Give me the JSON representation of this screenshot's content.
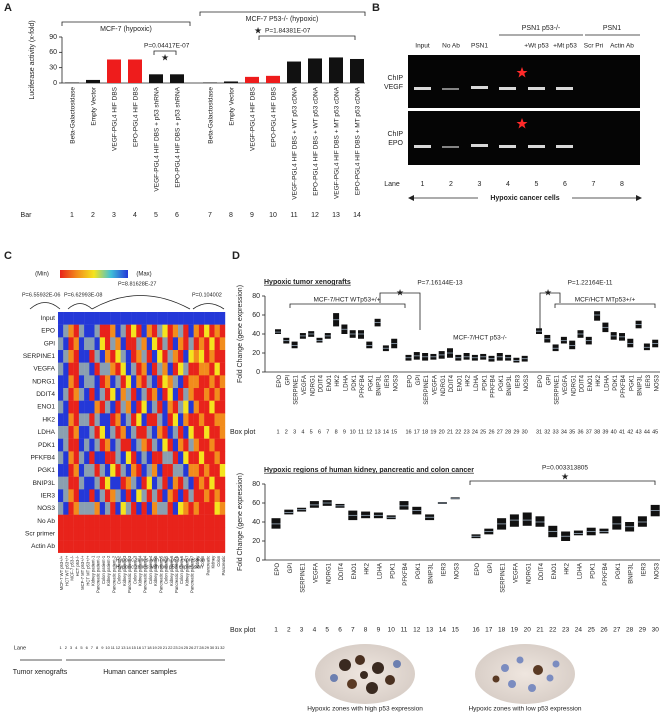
{
  "chart_data": [
    {
      "type": "bar",
      "panel": "A",
      "ylabel": "Luciferase activity (x-fold)",
      "ylim": [
        0,
        90
      ],
      "yticks": [
        0,
        30,
        60,
        90
      ],
      "categories": [
        "Beta-Galactosidase",
        "Empty Vector",
        "VEGF-PGL4 HIF DBS",
        "EPO-PGL4 HIF DBS",
        "VEGF-PGL4 HIF DBS + p53 shRNA",
        "EPO-PGL4 HIF DBS + p53 shRNA",
        "Beta-Galactosidase",
        "Empty Vector",
        "VEGF-PGL4 HIF DBS",
        "EPO-PGL4 HIF DBS",
        "VEGF-PGL4 HIF DBS + WT p53 cDNA",
        "EPO-PGL4 HIF DBS + WT p53 cDNA",
        "VEGF-PGL4 HIF DBS + MT p53 cDNA",
        "EPO-PGL4 HIF DBS + MT p53 cDNA"
      ],
      "values": [
        1,
        6,
        46,
        46,
        17,
        17,
        1,
        3,
        12,
        14,
        42,
        48,
        50,
        47
      ],
      "colors": [
        "#111111",
        "#111111",
        "#ee1c1c",
        "#ee1c1c",
        "#111111",
        "#111111",
        "#111111",
        "#111111",
        "#ee1c1c",
        "#ee1c1c",
        "#111111",
        "#111111",
        "#111111",
        "#111111"
      ],
      "bar_label": "Bar",
      "bar_numbers": [
        1,
        2,
        3,
        4,
        5,
        6,
        7,
        8,
        9,
        10,
        11,
        12,
        13,
        14
      ],
      "group_labels": [
        "MCF-7 (hypoxic)",
        "MCF-7 P53-/- (hypoxic)"
      ],
      "p_values": [
        "P=0.04417E-07",
        "P=1.84381E-07"
      ],
      "star": "★"
    },
    {
      "type": "heatmap",
      "panel": "C",
      "legend_min": "(Min)",
      "legend_max": "(Max)",
      "scale_colors": [
        "#e8231b",
        "#f28c1c",
        "#f4e41e",
        "#8a9fb0",
        "#2438d8"
      ],
      "rows": [
        "Input",
        "EPO",
        "GPI",
        "SERPINE1",
        "VEGFA",
        "NDRG1",
        "DDIT4",
        "ENO1",
        "HK2",
        "LDHA",
        "PDK1",
        "PFKFB4",
        "PGK1",
        "BNIP3L",
        "IER3",
        "NOS3",
        "No Ab",
        "Scr primer",
        "Actin Ab"
      ],
      "columns": [
        "MCF-7 WT p53+/+",
        "HCT WT p53+/+",
        "MCF-7 p53-/-",
        "HCT p53-/-",
        "MCF-7 MT p53+/+",
        "HCT MT p53+/+",
        "Kidney patient-1",
        "Pancreatic patient-1",
        "Colon patient-1",
        "Kidney patient-2",
        "Pancreatic patient-2",
        "Colon patient-2",
        "Kidney patient-3",
        "Pancreatic patient-3",
        "Colon patient-3",
        "Kidney patient-4",
        "Pancreatic patient-4",
        "Colon patient-4",
        "Kidney patient-5",
        "Pancreatic patient-5",
        "Colon patient-5",
        "Kidney patient-6",
        "Pancreatic patient-6",
        "Colon patient-6",
        "Kidney patient-7",
        "Pancreatic patient-7",
        "Kidney",
        "Colon",
        "Pancreatic",
        "Kidney",
        "Colon",
        "Pancreatic"
      ],
      "lane_label": "Lane",
      "lanes": [
        1,
        2,
        3,
        4,
        5,
        6,
        7,
        8,
        9,
        10,
        11,
        12,
        13,
        14,
        15,
        16,
        17,
        18,
        19,
        20,
        21,
        22,
        23,
        24,
        25,
        26,
        27,
        28,
        29,
        30,
        31,
        32
      ],
      "values": [
        [
          4,
          4,
          4,
          4,
          4,
          4,
          4,
          4,
          4,
          4,
          4,
          4,
          4,
          4,
          4,
          4,
          4,
          4,
          4,
          4,
          4,
          4,
          4,
          4,
          4,
          4,
          4,
          4,
          4,
          4,
          4,
          4
        ],
        [
          4,
          3,
          1,
          0,
          3,
          4,
          4,
          3,
          0,
          0,
          1,
          4,
          3,
          0,
          2,
          0,
          4,
          1,
          0,
          3,
          2,
          0,
          1,
          3,
          0,
          4,
          1,
          0,
          2,
          0,
          1,
          0
        ],
        [
          3,
          4,
          0,
          1,
          4,
          3,
          3,
          4,
          2,
          0,
          3,
          1,
          4,
          0,
          0,
          3,
          1,
          4,
          2,
          0,
          3,
          0,
          4,
          1,
          0,
          3,
          0,
          1,
          0,
          2,
          0,
          1
        ],
        [
          4,
          3,
          1,
          0,
          4,
          4,
          0,
          3,
          4,
          1,
          0,
          2,
          3,
          4,
          0,
          1,
          3,
          0,
          4,
          2,
          0,
          3,
          1,
          0,
          4,
          2,
          1,
          2,
          0,
          1,
          0,
          0
        ],
        [
          3,
          4,
          0,
          0,
          3,
          3,
          4,
          0,
          3,
          3,
          1,
          0,
          2,
          4,
          3,
          0,
          1,
          4,
          0,
          3,
          1,
          4,
          0,
          2,
          3,
          0,
          0,
          1,
          1,
          0,
          2,
          0
        ],
        [
          4,
          4,
          1,
          0,
          4,
          3,
          3,
          4,
          0,
          1,
          4,
          3,
          0,
          2,
          4,
          1,
          0,
          3,
          4,
          0,
          2,
          1,
          3,
          4,
          0,
          1,
          1,
          0,
          0,
          1,
          0,
          1
        ],
        [
          4,
          3,
          0,
          1,
          3,
          4,
          0,
          4,
          3,
          0,
          2,
          4,
          1,
          3,
          0,
          4,
          3,
          0,
          1,
          4,
          0,
          2,
          4,
          0,
          3,
          1,
          0,
          0,
          1,
          0,
          1,
          0
        ],
        [
          3,
          4,
          0,
          0,
          4,
          4,
          4,
          1,
          0,
          3,
          4,
          0,
          3,
          1,
          4,
          0,
          2,
          4,
          3,
          0,
          4,
          1,
          0,
          3,
          2,
          4,
          1,
          0,
          0,
          2,
          0,
          0
        ],
        [
          4,
          4,
          1,
          0,
          3,
          3,
          0,
          3,
          4,
          4,
          0,
          1,
          4,
          3,
          0,
          2,
          4,
          0,
          0,
          3,
          4,
          0,
          2,
          4,
          1,
          0,
          0,
          1,
          0,
          0,
          1,
          1
        ],
        [
          3,
          3,
          0,
          1,
          4,
          4,
          3,
          0,
          2,
          4,
          3,
          0,
          1,
          4,
          3,
          0,
          0,
          3,
          4,
          1,
          0,
          4,
          3,
          0,
          4,
          2,
          0,
          0,
          2,
          0,
          0,
          1
        ],
        [
          4,
          3,
          0,
          0,
          4,
          3,
          4,
          3,
          0,
          1,
          4,
          3,
          0,
          0,
          4,
          3,
          1,
          0,
          3,
          4,
          2,
          0,
          4,
          1,
          0,
          3,
          1,
          0,
          0,
          1,
          0,
          0
        ],
        [
          3,
          4,
          1,
          0,
          3,
          4,
          0,
          4,
          4,
          0,
          0,
          3,
          4,
          2,
          0,
          4,
          3,
          4,
          0,
          0,
          3,
          3,
          0,
          4,
          2,
          0,
          0,
          2,
          0,
          0,
          1,
          0
        ],
        [
          4,
          4,
          0,
          1,
          4,
          3,
          3,
          0,
          3,
          4,
          2,
          0,
          3,
          4,
          1,
          0,
          4,
          3,
          1,
          4,
          0,
          0,
          3,
          3,
          4,
          1,
          1,
          0,
          1,
          0,
          0,
          2
        ],
        [
          3,
          3,
          0,
          0,
          3,
          4,
          4,
          3,
          0,
          2,
          4,
          4,
          0,
          1,
          3,
          4,
          0,
          2,
          4,
          3,
          0,
          4,
          1,
          0,
          3,
          4,
          0,
          1,
          0,
          2,
          0,
          0
        ],
        [
          4,
          3,
          1,
          0,
          4,
          4,
          0,
          4,
          3,
          0,
          1,
          3,
          4,
          0,
          4,
          2,
          3,
          0,
          3,
          0,
          4,
          1,
          0,
          4,
          0,
          3,
          0,
          0,
          1,
          0,
          1,
          0
        ],
        [
          3,
          4,
          0,
          1,
          3,
          3,
          3,
          1,
          4,
          3,
          0,
          4,
          2,
          3,
          0,
          4,
          0,
          4,
          1,
          3,
          3,
          0,
          4,
          2,
          1,
          0,
          1,
          0,
          0,
          0,
          2,
          1
        ],
        [
          0,
          0,
          0,
          0,
          0,
          0,
          0,
          0,
          0,
          0,
          0,
          0,
          0,
          0,
          0,
          0,
          0,
          0,
          0,
          0,
          0,
          0,
          0,
          0,
          0,
          0,
          0,
          0,
          0,
          0,
          0,
          0
        ],
        [
          0,
          0,
          0,
          0,
          0,
          0,
          0,
          0,
          0,
          0,
          0,
          0,
          0,
          0,
          0,
          0,
          0,
          0,
          0,
          0,
          0,
          0,
          0,
          0,
          0,
          0,
          0,
          0,
          0,
          0,
          0,
          0
        ],
        [
          0,
          0,
          0,
          0,
          0,
          0,
          0,
          0,
          0,
          0,
          0,
          0,
          0,
          0,
          0,
          0,
          0,
          0,
          0,
          0,
          0,
          0,
          0,
          0,
          0,
          0,
          0,
          0,
          0,
          0,
          0,
          0
        ]
      ],
      "p_values": [
        "P=6.55932E-06",
        "P=6.62993E-08",
        "P=8.81628E-27",
        "P=0.104002"
      ],
      "zone_labels": [
        "Hypoxic zones with high p53 expression",
        "Hypoxic zones with low p53 expression"
      ],
      "footer_labels": [
        "Tumor xenografts",
        "Human cancer samples"
      ]
    },
    {
      "type": "box",
      "panel": "D",
      "title": "Hypoxic tumor xenografts",
      "ylabel": "Fold Change (gene expression)",
      "ylim": [
        0,
        80
      ],
      "yticks": [
        0,
        20,
        40,
        60,
        80
      ],
      "categories": [
        "EPO",
        "GPI",
        "SERPINE1",
        "VEGFA",
        "NDRG1",
        "DDIT4",
        "ENO1",
        "HK2",
        "LDHA",
        "PDK1",
        "PFKFB4",
        "PGK1",
        "BNIP3L",
        "IER3",
        "NOS3",
        "EPO",
        "GPI",
        "SERPINE1",
        "VEGFA",
        "NDRG1",
        "DDIT4",
        "ENO1",
        "HK2",
        "LDHA",
        "PDK1",
        "PFKFB4",
        "PGK1",
        "BNIP3L",
        "IER3",
        "NOS3",
        "EPO",
        "GPI",
        "SERPINE1",
        "VEGFA",
        "NDRG1",
        "DDIT4",
        "ENO1",
        "HK2",
        "LDHA",
        "PDK1",
        "PFKFB4",
        "PGK1",
        "BNIP3L",
        "IER3",
        "NOS3"
      ],
      "box_label": "Box plot",
      "box_numbers": [
        1,
        2,
        3,
        4,
        5,
        6,
        7,
        8,
        9,
        10,
        11,
        12,
        13,
        14,
        15,
        16,
        17,
        18,
        19,
        20,
        21,
        22,
        23,
        24,
        25,
        26,
        27,
        28,
        29,
        30,
        31,
        32,
        33,
        34,
        35,
        36,
        37,
        38,
        39,
        40,
        41,
        42,
        43,
        44,
        45
      ],
      "q1": [
        40,
        30,
        25,
        35,
        37,
        31,
        35,
        48,
        40,
        36,
        35,
        25,
        48,
        22,
        25,
        12,
        13,
        12,
        13,
        14,
        15,
        12,
        13,
        12,
        13,
        11,
        12,
        12,
        10,
        11,
        40,
        31,
        22,
        30,
        24,
        36,
        29,
        54,
        42,
        34,
        33,
        26,
        46,
        23,
        26
      ],
      "median": [
        42,
        33,
        28,
        38,
        40,
        33,
        38,
        55,
        45,
        40,
        40,
        28,
        52,
        25,
        30,
        15,
        17,
        16,
        16,
        18,
        20,
        15,
        16,
        15,
        16,
        14,
        16,
        15,
        12,
        14,
        43,
        35,
        25,
        33,
        28,
        40,
        33,
        60,
        47,
        38,
        37,
        30,
        50,
        26,
        30
      ],
      "q3": [
        45,
        36,
        32,
        41,
        43,
        36,
        41,
        62,
        50,
        44,
        44,
        32,
        56,
        28,
        35,
        18,
        21,
        20,
        19,
        22,
        25,
        18,
        20,
        18,
        19,
        17,
        20,
        18,
        15,
        17,
        46,
        39,
        29,
        37,
        33,
        44,
        37,
        64,
        52,
        42,
        41,
        35,
        54,
        30,
        34
      ],
      "group_labels": [
        "MCF-7/HCT WTp53+/+",
        "MCF-7/HCT p53-/-",
        "MCF/HCT MTp53+/+"
      ],
      "p_values": [
        "P=7.16144E-13",
        "P=1.22164E-11"
      ],
      "star": "★"
    },
    {
      "type": "box",
      "title": "Hypoxic regions of human kidney, pancreatic and colon cancer",
      "ylabel": "Fold Change (gene expression)",
      "ylim": [
        0,
        80
      ],
      "yticks": [
        0,
        20,
        40,
        60,
        80
      ],
      "categories": [
        "EPO",
        "GPI",
        "SERPINE1",
        "VEGFA",
        "NDRG1",
        "DDIT4",
        "ENO1",
        "HK2",
        "LDHA",
        "PDK1",
        "PFKFB4",
        "PGK1",
        "BNIP3L",
        "IER3",
        "NOS3",
        "EPO",
        "GPI",
        "SERPINE1",
        "VEGFA",
        "NDRG1",
        "DDIT4",
        "ENO1",
        "HK2",
        "LDHA",
        "PDK1",
        "PFKFB4",
        "PGK1",
        "BNIP3L",
        "IER3",
        "NOS3"
      ],
      "box_label": "Box plot",
      "box_numbers": [
        1,
        2,
        3,
        4,
        5,
        6,
        7,
        8,
        9,
        10,
        11,
        12,
        13,
        14,
        15,
        16,
        17,
        18,
        19,
        20,
        21,
        22,
        23,
        24,
        25,
        26,
        27,
        28,
        29,
        30
      ],
      "q1": [
        33,
        48,
        51,
        55,
        57,
        55,
        42,
        44,
        44,
        43,
        53,
        48,
        42,
        59,
        64,
        23,
        27,
        32,
        35,
        36,
        35,
        24,
        20,
        26,
        26,
        28,
        32,
        30,
        35,
        46
      ],
      "median": [
        38,
        50,
        53,
        58,
        60,
        57,
        47,
        47,
        47,
        45,
        57,
        52,
        45,
        60,
        65,
        25,
        30,
        38,
        42,
        42,
        40,
        30,
        25,
        28,
        30,
        30,
        38,
        35,
        40,
        52
      ],
      "q3": [
        44,
        53,
        55,
        62,
        63,
        59,
        52,
        51,
        50,
        47,
        62,
        56,
        48,
        61,
        66,
        27,
        33,
        44,
        48,
        50,
        46,
        36,
        30,
        31,
        34,
        33,
        46,
        40,
        46,
        58
      ],
      "p_values": [
        "P=0.003313805"
      ],
      "star": "★",
      "image_captions": [
        "Hypoxic zones with high p53 expression",
        "Hypoxic zones with low p53 expression"
      ]
    }
  ],
  "gel": {
    "panel": "B",
    "lane_headers": [
      "Input",
      "No Ab",
      "PSN1",
      null,
      "+Wt p53",
      "+Mt p53",
      "Scr Pri",
      "Actin Ab"
    ],
    "group_headers": [
      "PSN1 p53-/-",
      "PSN1"
    ],
    "row_labels": [
      [
        "ChIP",
        "VEGF"
      ],
      [
        "ChIP",
        "EPO"
      ]
    ],
    "lane_label": "Lane",
    "lanes": [
      1,
      2,
      3,
      4,
      5,
      6,
      7,
      8
    ],
    "caption": "Hypoxic cancer cells"
  }
}
